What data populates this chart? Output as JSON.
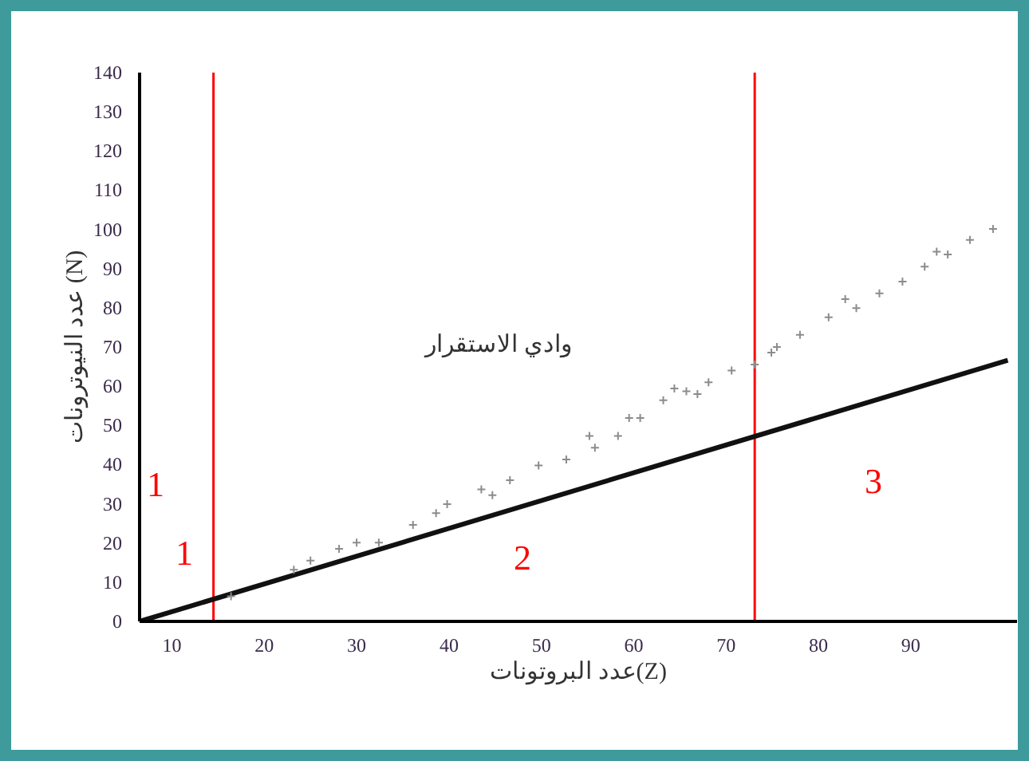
{
  "chart_data": {
    "type": "scatter",
    "xlabel": "عدد البروتونات(Z)",
    "ylabel": "عدد النيوترونات (N)",
    "xlim": [
      6.5,
      101.5
    ],
    "ylim": [
      0,
      140
    ],
    "xticks": [
      10,
      20,
      30,
      40,
      50,
      60,
      70,
      80,
      90
    ],
    "yticks": [
      0,
      10,
      20,
      30,
      40,
      50,
      60,
      70,
      80,
      90,
      100,
      110,
      120,
      130,
      140
    ],
    "grid": false,
    "series": [
      {
        "type": "line",
        "color": "#111111",
        "x": [
          6.5,
          100.5
        ],
        "values": [
          0,
          66.6
        ]
      },
      {
        "marker": "cross",
        "color": "#8c8c8c",
        "x": [
          16.4,
          23.2,
          25.0,
          28.1,
          30.0,
          32.4,
          36.1,
          38.6,
          39.8,
          43.5,
          44.7,
          46.6,
          49.7,
          52.7,
          55.2,
          55.8,
          58.3,
          59.5,
          60.7,
          63.2,
          64.4,
          65.7,
          66.9,
          68.1,
          70.6,
          73.1,
          74.9,
          75.5,
          78.0,
          81.1,
          82.9,
          84.1,
          86.6,
          89.1,
          91.5,
          92.8,
          94.0,
          96.4,
          98.9
        ],
        "values": [
          6.4,
          13.2,
          15.5,
          18.5,
          20.1,
          20.1,
          24.6,
          27.6,
          29.9,
          33.7,
          32.2,
          36.0,
          39.8,
          41.3,
          47.3,
          44.3,
          47.3,
          51.9,
          51.9,
          56.4,
          59.4,
          58.7,
          58.0,
          61.0,
          64.0,
          65.5,
          68.6,
          70.0,
          73.1,
          77.6,
          82.2,
          79.9,
          83.7,
          86.7,
          90.5,
          94.3,
          93.6,
          97.3,
          100.1
        ]
      }
    ],
    "ref_lines": [
      {
        "axis": "x",
        "value": 14.5,
        "color": "#ff0000"
      },
      {
        "axis": "x",
        "value": 73.1,
        "color": "#ff0000"
      }
    ],
    "annotations": [
      "وادي الاستقرار",
      "1",
      "1",
      "2",
      "3"
    ]
  }
}
